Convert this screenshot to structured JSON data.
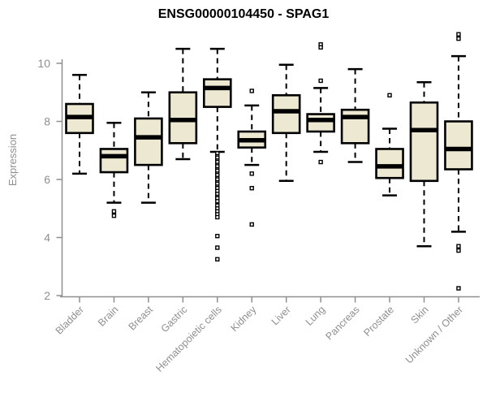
{
  "title": "ENSG00000104450 - SPAG1",
  "chart_data": {
    "type": "boxplot",
    "title": "ENSG00000104450 - SPAG1",
    "xlabel": "",
    "ylabel": "Expression",
    "yticks": [
      2,
      4,
      6,
      8,
      10
    ],
    "ylim": [
      1.8,
      11.2
    ],
    "grid": false,
    "categories": [
      "Bladder",
      "Brain",
      "Breast",
      "Gastric",
      "Hematopoietic cells",
      "Kidney",
      "Liver",
      "Lung",
      "Pancreas",
      "Prostate",
      "Skin",
      "Unknown / Other"
    ],
    "boxes": [
      {
        "category": "Bladder",
        "low": 6.2,
        "q1": 7.6,
        "median": 8.15,
        "q3": 8.6,
        "high": 9.6,
        "outliers": []
      },
      {
        "category": "Brain",
        "low": 5.2,
        "q1": 6.25,
        "median": 6.8,
        "q3": 7.05,
        "high": 7.95,
        "outliers": [
          4.9,
          4.75
        ]
      },
      {
        "category": "Breast",
        "low": 5.2,
        "q1": 6.5,
        "median": 7.45,
        "q3": 8.1,
        "high": 9.0,
        "outliers": []
      },
      {
        "category": "Gastric",
        "low": 6.7,
        "q1": 7.25,
        "median": 8.05,
        "q3": 9.0,
        "high": 10.5,
        "outliers": []
      },
      {
        "category": "Hematopoietic cells",
        "low": 6.95,
        "q1": 8.5,
        "median": 9.15,
        "q3": 9.45,
        "high": 10.5,
        "outliers": [
          6.9,
          6.8,
          6.75,
          6.65,
          6.6,
          6.5,
          6.45,
          6.35,
          6.3,
          6.2,
          6.15,
          6.05,
          6.0,
          5.9,
          5.85,
          5.75,
          5.7,
          5.6,
          5.5,
          5.4,
          5.35,
          5.25,
          5.1,
          5.0,
          4.9,
          4.8,
          4.7,
          4.05,
          3.65,
          3.25
        ]
      },
      {
        "category": "Kidney",
        "low": 6.5,
        "q1": 7.1,
        "median": 7.35,
        "q3": 7.65,
        "high": 8.55,
        "outliers": [
          9.05,
          6.2,
          5.7,
          4.45
        ]
      },
      {
        "category": "Liver",
        "low": 5.95,
        "q1": 7.6,
        "median": 8.35,
        "q3": 8.9,
        "high": 9.95,
        "outliers": []
      },
      {
        "category": "Lung",
        "low": 6.95,
        "q1": 7.65,
        "median": 8.05,
        "q3": 8.25,
        "high": 9.15,
        "outliers": [
          10.65,
          10.55,
          9.4,
          6.6
        ]
      },
      {
        "category": "Pancreas",
        "low": 6.6,
        "q1": 7.25,
        "median": 8.15,
        "q3": 8.4,
        "high": 9.8,
        "outliers": []
      },
      {
        "category": "Prostate",
        "low": 5.45,
        "q1": 6.05,
        "median": 6.45,
        "q3": 7.05,
        "high": 7.75,
        "outliers": [
          8.9
        ]
      },
      {
        "category": "Skin",
        "low": 3.7,
        "q1": 5.95,
        "median": 7.7,
        "q3": 8.65,
        "high": 9.35,
        "outliers": []
      },
      {
        "category": "Unknown / Other",
        "low": 4.2,
        "q1": 6.35,
        "median": 7.05,
        "q3": 8.0,
        "high": 10.25,
        "outliers": [
          11.0,
          10.85,
          3.7,
          3.55,
          2.25
        ]
      }
    ],
    "colors": {
      "box_fill": "#ede8d1",
      "box_stroke": "#000000",
      "median": "#000000",
      "whisker": "#000000",
      "outlier_fill": "#ffffff",
      "axis": "#8f8f8f",
      "tick_label": "#8f8f8f",
      "title": "#000000",
      "background": "#ffffff"
    }
  }
}
